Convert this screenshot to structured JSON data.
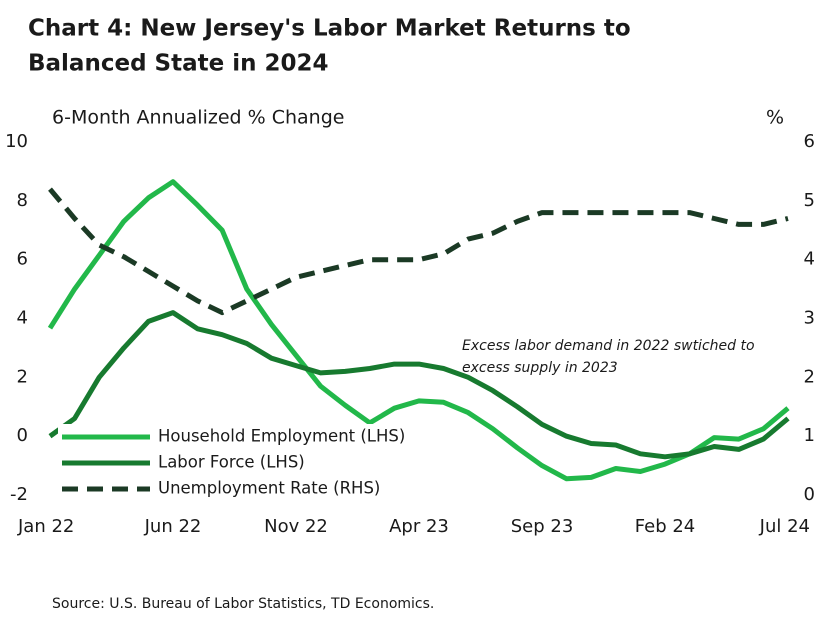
{
  "chart_data": {
    "type": "line",
    "title": [
      "Chart 4: New Jersey's Labor Market Returns to",
      "Balanced State in 2024"
    ],
    "y_label": "6-Month Annualized % Change",
    "y2_label": "%",
    "annotation": [
      "Excess labor demand in 2022 swtiched to",
      "excess supply in 2023"
    ],
    "source": "Source: U.S. Bureau of Labor Statistics, TD Economics.",
    "categories": [
      "Jan 22",
      null,
      null,
      null,
      null,
      "Jun 22",
      null,
      null,
      null,
      null,
      "Nov 22",
      null,
      null,
      null,
      null,
      "Apr 23",
      null,
      null,
      null,
      null,
      "Sep 23",
      null,
      null,
      null,
      null,
      "Feb 24",
      null,
      null,
      null,
      null,
      "Jul 24"
    ],
    "ylim": [
      -2,
      10
    ],
    "yticks": [
      -2,
      0,
      2,
      4,
      6,
      8,
      10
    ],
    "y2lim": [
      0,
      6
    ],
    "y2ticks": [
      0,
      1,
      2,
      3,
      4,
      5,
      6
    ],
    "legend": "lower left",
    "series": [
      {
        "name": "Household Employment (LHS)",
        "color": "#22b84a",
        "style": "solid",
        "axis": "y",
        "values": [
          3.67,
          5.0,
          6.15,
          7.3,
          8.1,
          8.65,
          7.85,
          7.0,
          5.0,
          3.8,
          2.75,
          1.7,
          1.05,
          0.45,
          0.95,
          1.2,
          1.15,
          0.8,
          0.25,
          -0.4,
          -1.0,
          -1.45,
          -1.4,
          -1.1,
          -1.2,
          -0.95,
          -0.6,
          -0.05,
          -0.1,
          0.25,
          0.95
        ]
      },
      {
        "name": "Labor Force (LHS)",
        "color": "#177a2f",
        "style": "solid",
        "axis": "y",
        "values": [
          0.0,
          0.6,
          2.0,
          3.0,
          3.9,
          4.2,
          3.65,
          3.45,
          3.15,
          2.65,
          2.4,
          2.15,
          2.2,
          2.3,
          2.45,
          2.45,
          2.3,
          2.0,
          1.55,
          1.0,
          0.4,
          0.0,
          -0.25,
          -0.3,
          -0.6,
          -0.7,
          -0.6,
          -0.35,
          -0.45,
          -0.1,
          0.6
        ]
      },
      {
        "name": "Unemployment Rate (RHS)",
        "color": "#1b3a25",
        "style": "dashed",
        "axis": "y2",
        "values": [
          5.2,
          4.7,
          4.25,
          4.05,
          3.8,
          3.55,
          3.3,
          3.1,
          3.3,
          3.5,
          3.7,
          3.8,
          3.9,
          4.0,
          4.0,
          4.0,
          4.1,
          4.35,
          4.45,
          4.65,
          4.8,
          4.8,
          4.8,
          4.8,
          4.8,
          4.8,
          4.8,
          4.7,
          4.6,
          4.6,
          4.7
        ]
      }
    ]
  }
}
